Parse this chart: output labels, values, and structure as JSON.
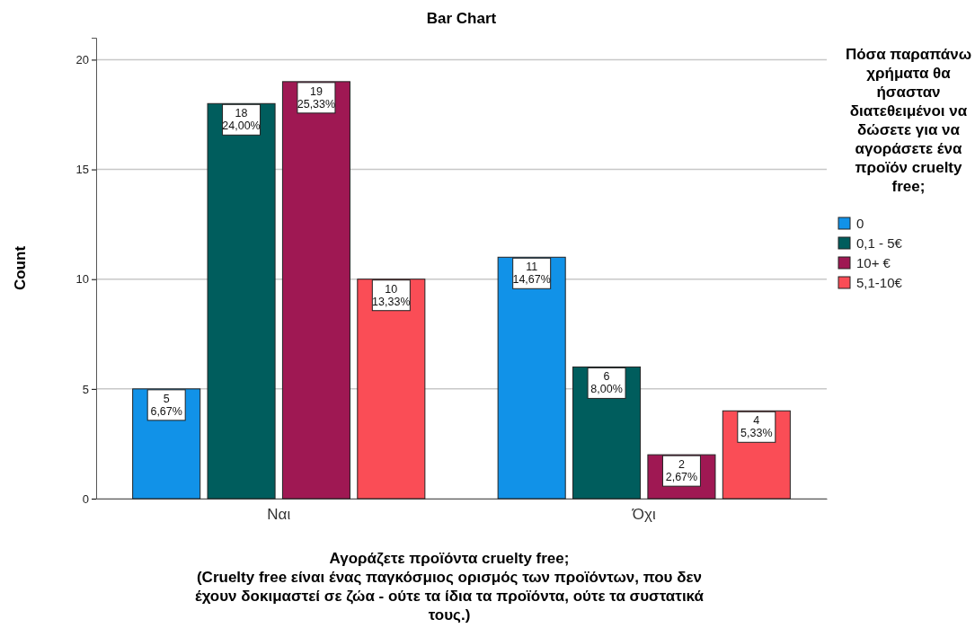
{
  "chart_data": {
    "type": "bar",
    "title": "Bar Chart",
    "xlabel": "Αγοράζετε προϊόντα cruelty free;\n(Cruelty free είναι ένας παγκόσμιος ορισμός των προϊόντων, που δεν\nέχουν δοκιμαστεί σε ζώα - ούτε τα ίδια τα προϊόντα, ούτε τα συστατικά\nτους.)",
    "ylabel": "Count",
    "legend_title": "Πόσα παραπάνω χρήματα θα ήσασταν διατεθειμένοι να δώσετε για να αγοράσετε ένα προϊόν cruelty free;",
    "categories": [
      "Ναι",
      "Όχι"
    ],
    "series": [
      {
        "name": "0",
        "color": "#1192e8",
        "values": [
          5,
          11
        ],
        "value_labels": [
          "5\n6,67%",
          "11\n14,67%"
        ]
      },
      {
        "name": "0,1 - 5€",
        "color": "#005d5d",
        "values": [
          18,
          6
        ],
        "value_labels": [
          "18\n24,00%",
          "6\n8,00%"
        ]
      },
      {
        "name": "10+ €",
        "color": "#9f1853",
        "values": [
          19,
          2
        ],
        "value_labels": [
          "19\n25,33%",
          "2\n2,67%"
        ]
      },
      {
        "name": "5,1-10€",
        "color": "#fa4d56",
        "values": [
          10,
          4
        ],
        "value_labels": [
          "10\n13,33%",
          "4\n5,33%"
        ]
      }
    ],
    "ylim": [
      0,
      21
    ],
    "yticks": [
      0,
      5,
      10,
      15,
      20
    ],
    "grid": "y",
    "legend": "right"
  }
}
